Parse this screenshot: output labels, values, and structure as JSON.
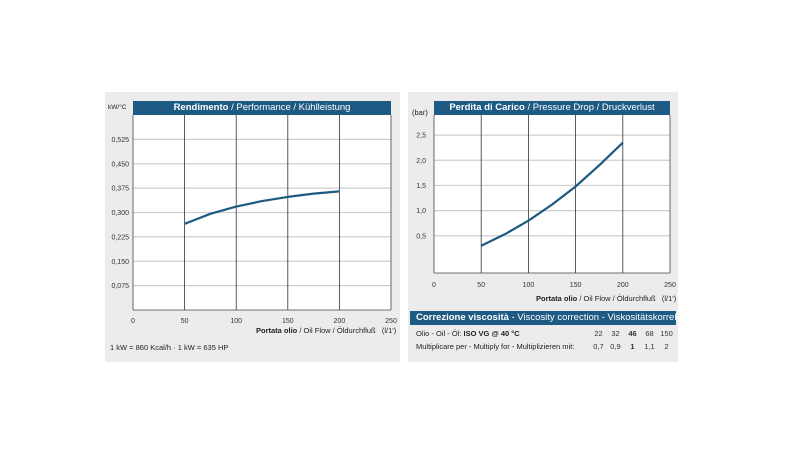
{
  "chart_data": [
    {
      "type": "line",
      "title_bold": "Rendimento",
      "title_rest": " / Performance / Kühlleistung",
      "ylabel": "kW/°C",
      "xlabel_bold": "Portata olio",
      "xlabel_rest": " / Oil Flow / Öldurchfluß",
      "xunit": "(l/1')",
      "x_ticks": [
        "0",
        "50",
        "100",
        "150",
        "200",
        "250"
      ],
      "y_ticks": [
        "0,075",
        "0,150",
        "0,225",
        "0,300",
        "0,375",
        "0,450",
        "0,525"
      ],
      "y_tick_values": [
        0.075,
        0.15,
        0.225,
        0.3,
        0.375,
        0.45,
        0.525
      ],
      "xlim": [
        0,
        250
      ],
      "ylim": [
        0,
        0.6
      ],
      "x": [
        50,
        75,
        100,
        125,
        150,
        175,
        200
      ],
      "y": [
        0.265,
        0.296,
        0.318,
        0.335,
        0.348,
        0.358,
        0.365
      ],
      "line_color": "#1e5a80",
      "grid": "vertical",
      "footnote": "1 kW = 860 Kcal/h  ·  1 kW = 635 HP"
    },
    {
      "type": "line",
      "title_bold": "Perdita di Carico",
      "title_rest": " / Pressure Drop / Druckverlust",
      "ylabel": "(bar)",
      "xlabel_bold": "Portata olio",
      "xlabel_rest": " / Oil Flow  / Öldurchfluß",
      "xunit": "(l/1')",
      "x_ticks": [
        "0",
        "50",
        "100",
        "150",
        "200",
        "250"
      ],
      "y_ticks": [
        "0,5",
        "1,0",
        "1,5",
        "2,0",
        "2,5"
      ],
      "y_tick_values": [
        0.5,
        1.0,
        1.5,
        2.0,
        2.5
      ],
      "xlim": [
        0,
        250
      ],
      "ylim": [
        -0.24,
        2.9
      ],
      "x": [
        50,
        75,
        100,
        125,
        150,
        175,
        200
      ],
      "y": [
        0.3,
        0.53,
        0.8,
        1.12,
        1.48,
        1.9,
        2.35
      ],
      "line_color": "#1e5a80",
      "grid": "vertical"
    }
  ],
  "viscosity": {
    "title_bold": "Correzione viscosità",
    "title_rest": "  -  Viscosity correction  -  Viskositätskorrektur",
    "row1_label": "Olio - Oil - Öl: ",
    "row1_bold": "ISO VG @ 40 °C",
    "row1_values": [
      "22",
      "32",
      "46",
      "68",
      "150"
    ],
    "row2_label": "Multiplicare per - Multiply for - Multiplizieren mit:",
    "row2_values": [
      "0,7",
      "0,9",
      "1",
      "1,1",
      "2"
    ]
  }
}
